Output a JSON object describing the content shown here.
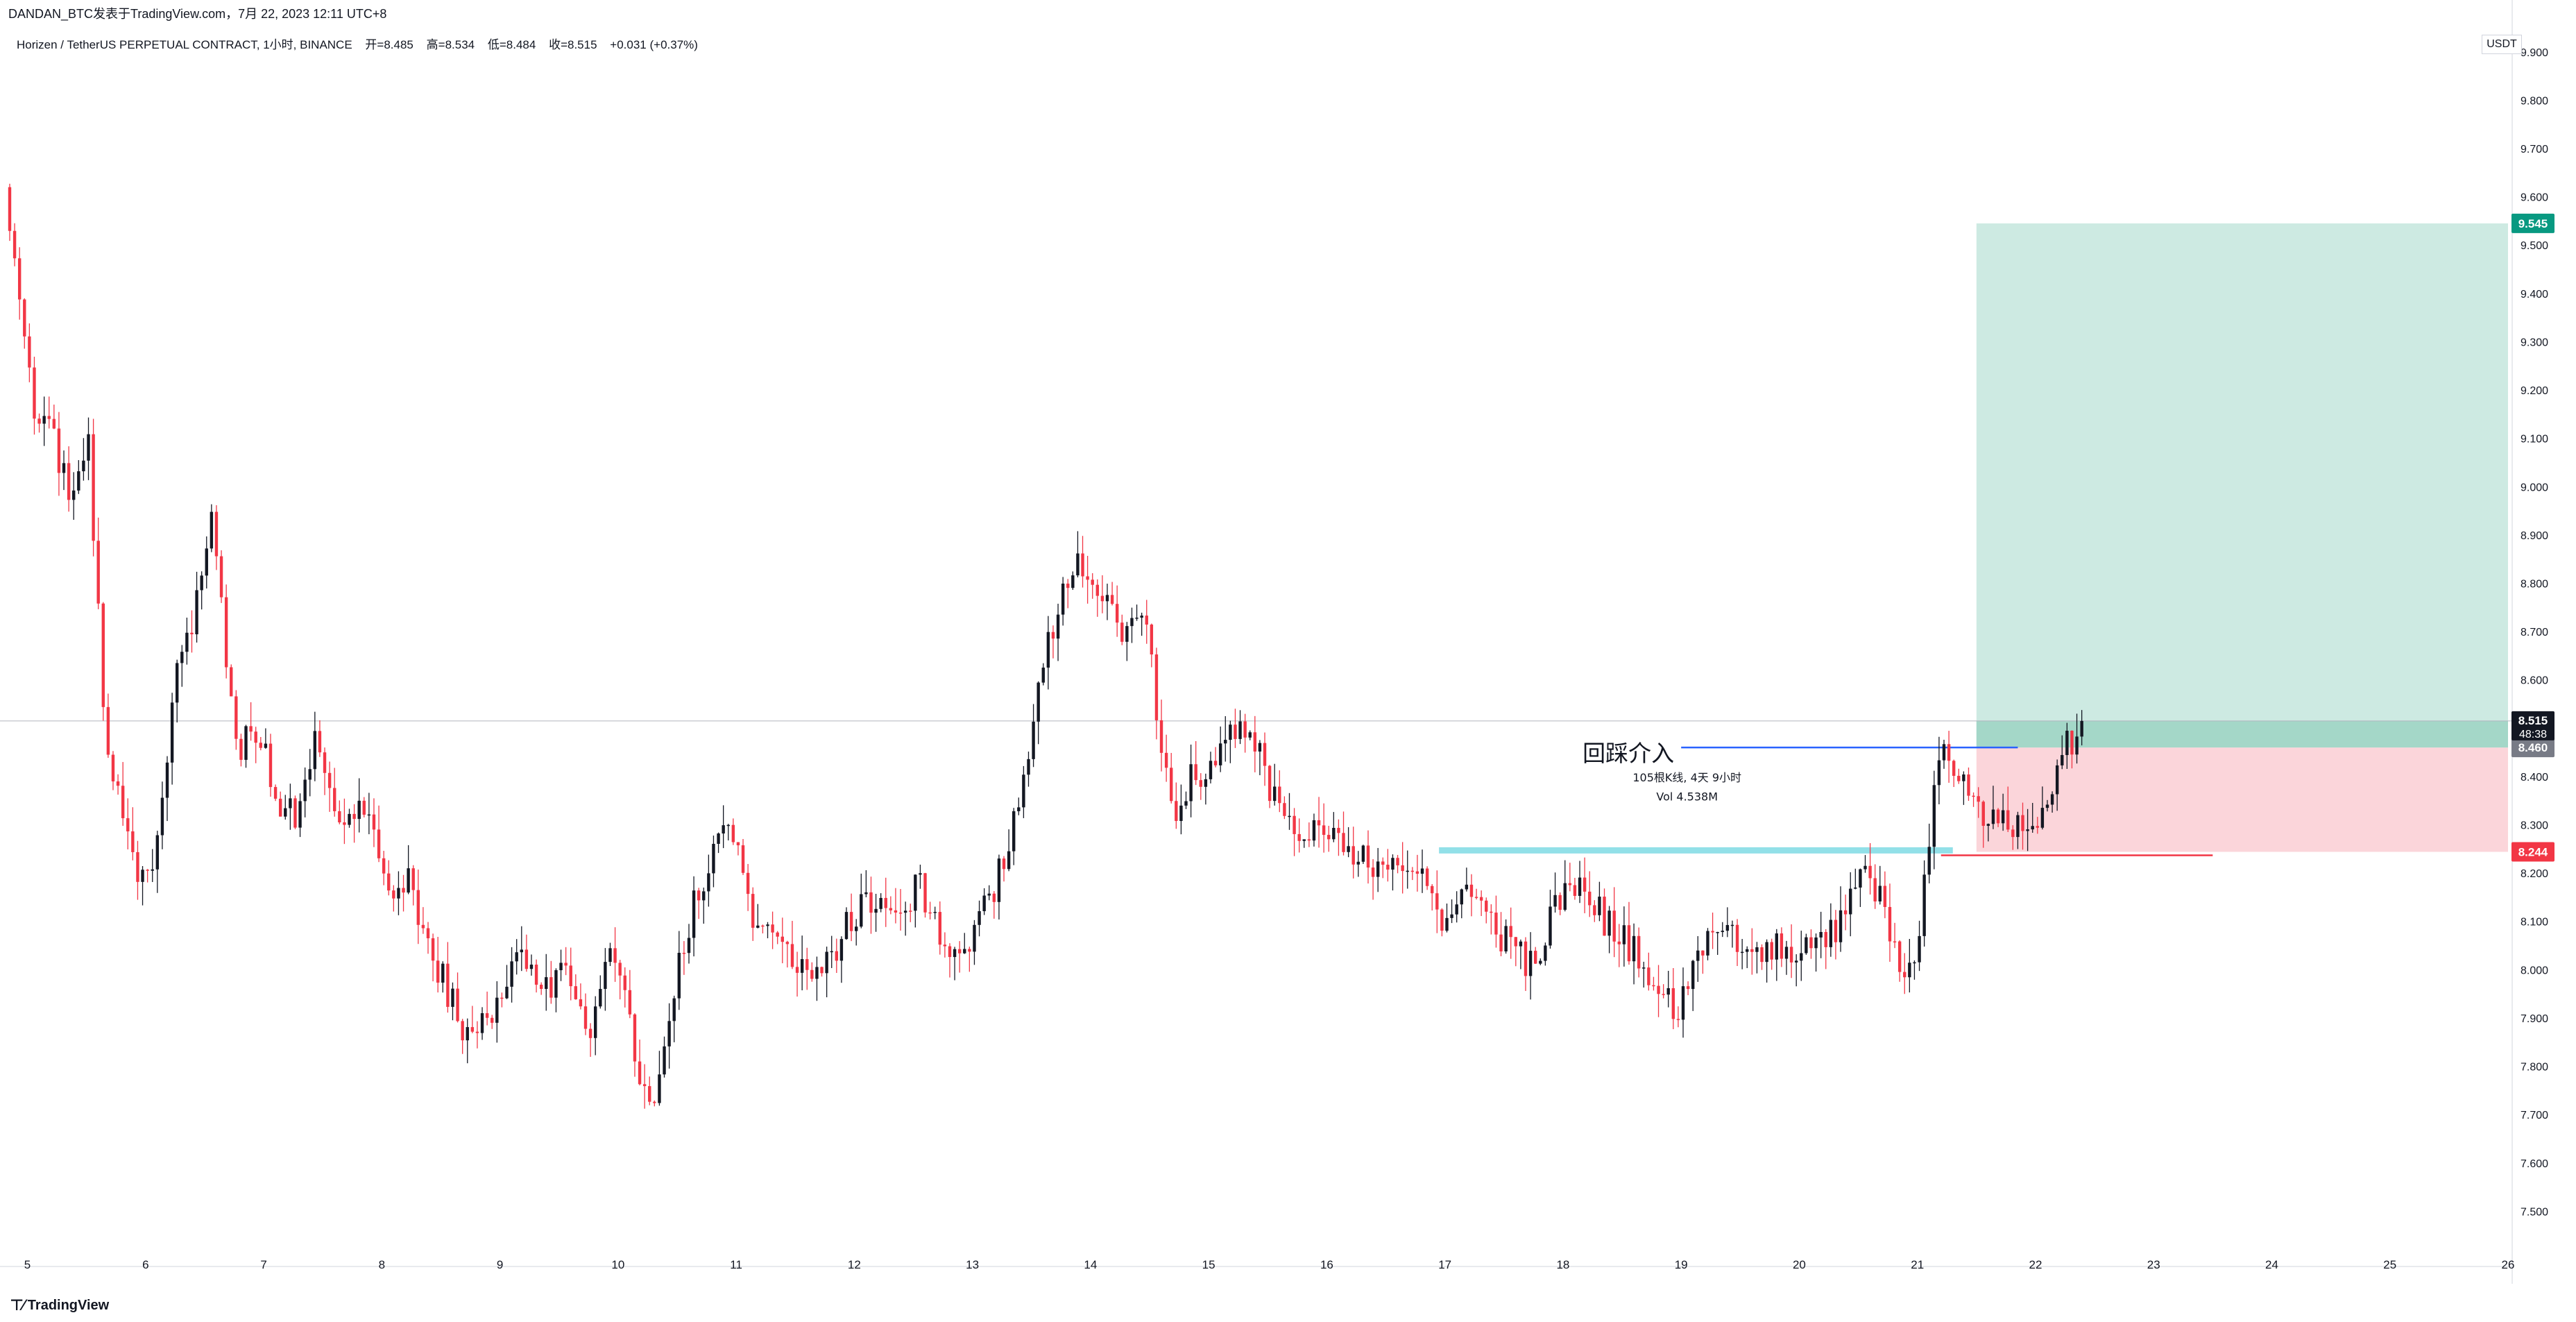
{
  "header": {
    "caption": "DANDAN_BTC发表于TradingView.com，7月 22, 2023 12:11 UTC+8",
    "legend": {
      "symbol": "Horizen / TetherUS PERPETUAL CONTRACT, 1小时, BINANCE",
      "open": "开=8.485",
      "high": "高=8.534",
      "low": "低=8.484",
      "close": "收=8.515",
      "change": "+0.031 (+0.37%)"
    },
    "currency": "USDT"
  },
  "colors": {
    "up": "#131722",
    "down": "#f23645",
    "profit_zone": "#b2dfd3",
    "loss_zone": "#f9c7cd",
    "target_label": "#089981",
    "stop_label": "#f23645",
    "entry_label": "#787b86",
    "support_line": "#7fdbe5",
    "entry_line": "#2962ff"
  },
  "footer": {
    "brand": "TradingView"
  },
  "chart_data": {
    "type": "candlestick",
    "ylim": [
      7.4,
      9.95
    ],
    "yticks": [
      "9.900",
      "9.800",
      "9.700",
      "9.600",
      "9.500",
      "9.400",
      "9.300",
      "9.200",
      "9.100",
      "9.000",
      "8.900",
      "8.800",
      "8.700",
      "8.600",
      "8.500",
      "8.400",
      "8.300",
      "8.200",
      "8.100",
      "8.000",
      "7.900",
      "7.800",
      "7.700",
      "7.600",
      "7.500"
    ],
    "xlabels": [
      "5",
      "6",
      "7",
      "8",
      "9",
      "10",
      "11",
      "12",
      "13",
      "14",
      "15",
      "16",
      "17",
      "18",
      "19",
      "20",
      "21",
      "22",
      "23",
      "24",
      "25",
      "26"
    ],
    "xdomain": [
      4.85,
      26.0
    ],
    "current_price": {
      "price": 8.515,
      "label": "8.515",
      "countdown": "48:38"
    },
    "position": {
      "entry": 8.46,
      "entry_label": "8.460",
      "target": 9.545,
      "target_label": "9.545",
      "stop": 8.244,
      "stop_label": "8.244",
      "start_day": 21.5,
      "end_day": 26.0
    },
    "annotations": {
      "entry_text": "回踩介入",
      "bars_text": "105根K线, 4天 9小时",
      "volume_text": "Vol 4.538M",
      "support_level": 8.247,
      "support_from": 16.95,
      "support_to": 21.3,
      "entry_line_from": 19.0,
      "entry_line_to": 21.85,
      "stop_line_from": 21.2,
      "stop_line_to": 23.5
    },
    "anchors": [
      [
        4.85,
        9.62
      ],
      [
        4.95,
        9.42
      ],
      [
        5.1,
        9.15
      ],
      [
        5.25,
        9.12
      ],
      [
        5.4,
        8.97
      ],
      [
        5.55,
        9.12
      ],
      [
        5.7,
        8.5
      ],
      [
        5.85,
        8.3
      ],
      [
        6.0,
        8.18
      ],
      [
        6.15,
        8.26
      ],
      [
        6.3,
        8.6
      ],
      [
        6.45,
        8.72
      ],
      [
        6.6,
        8.95
      ],
      [
        6.8,
        8.45
      ],
      [
        7.0,
        8.5
      ],
      [
        7.15,
        8.35
      ],
      [
        7.3,
        8.32
      ],
      [
        7.5,
        8.48
      ],
      [
        7.7,
        8.3
      ],
      [
        7.9,
        8.35
      ],
      [
        8.1,
        8.15
      ],
      [
        8.25,
        8.2
      ],
      [
        8.45,
        8.05
      ],
      [
        8.6,
        7.95
      ],
      [
        8.8,
        7.85
      ],
      [
        9.0,
        7.92
      ],
      [
        9.2,
        8.05
      ],
      [
        9.4,
        7.95
      ],
      [
        9.6,
        8.02
      ],
      [
        9.8,
        7.88
      ],
      [
        10.0,
        8.05
      ],
      [
        10.2,
        7.8
      ],
      [
        10.35,
        7.72
      ],
      [
        10.5,
        7.95
      ],
      [
        10.7,
        8.15
      ],
      [
        10.85,
        8.25
      ],
      [
        11.0,
        8.28
      ],
      [
        11.2,
        8.1
      ],
      [
        11.4,
        8.05
      ],
      [
        11.6,
        8.02
      ],
      [
        11.8,
        8.0
      ],
      [
        12.0,
        8.1
      ],
      [
        12.2,
        8.15
      ],
      [
        12.4,
        8.12
      ],
      [
        12.6,
        8.18
      ],
      [
        12.8,
        8.05
      ],
      [
        13.0,
        8.05
      ],
      [
        13.2,
        8.15
      ],
      [
        13.4,
        8.3
      ],
      [
        13.55,
        8.5
      ],
      [
        13.75,
        8.75
      ],
      [
        13.95,
        8.85
      ],
      [
        14.1,
        8.78
      ],
      [
        14.3,
        8.7
      ],
      [
        14.5,
        8.75
      ],
      [
        14.6,
        8.55
      ],
      [
        14.75,
        8.3
      ],
      [
        14.9,
        8.4
      ],
      [
        15.05,
        8.4
      ],
      [
        15.25,
        8.5
      ],
      [
        15.4,
        8.5
      ],
      [
        15.6,
        8.35
      ],
      [
        15.8,
        8.3
      ],
      [
        16.0,
        8.3
      ],
      [
        16.3,
        8.24
      ],
      [
        16.55,
        8.2
      ],
      [
        16.8,
        8.22
      ],
      [
        17.0,
        8.1
      ],
      [
        17.2,
        8.15
      ],
      [
        17.4,
        8.1
      ],
      [
        17.6,
        8.05
      ],
      [
        17.8,
        8.0
      ],
      [
        18.0,
        8.15
      ],
      [
        18.2,
        8.2
      ],
      [
        18.4,
        8.1
      ],
      [
        18.6,
        8.05
      ],
      [
        18.8,
        7.98
      ],
      [
        19.0,
        7.92
      ],
      [
        19.2,
        8.05
      ],
      [
        19.4,
        8.1
      ],
      [
        19.6,
        8.05
      ],
      [
        19.8,
        8.05
      ],
      [
        20.0,
        8.02
      ],
      [
        20.2,
        8.05
      ],
      [
        20.4,
        8.1
      ],
      [
        20.6,
        8.2
      ],
      [
        20.75,
        8.15
      ],
      [
        20.9,
        8.0
      ],
      [
        21.05,
        8.05
      ],
      [
        21.15,
        8.3
      ],
      [
        21.25,
        8.48
      ],
      [
        21.35,
        8.4
      ],
      [
        21.5,
        8.35
      ],
      [
        21.65,
        8.3
      ],
      [
        21.8,
        8.3
      ],
      [
        21.95,
        8.3
      ],
      [
        22.1,
        8.32
      ],
      [
        22.25,
        8.45
      ],
      [
        22.35,
        8.48
      ],
      [
        22.42,
        8.515
      ]
    ]
  }
}
